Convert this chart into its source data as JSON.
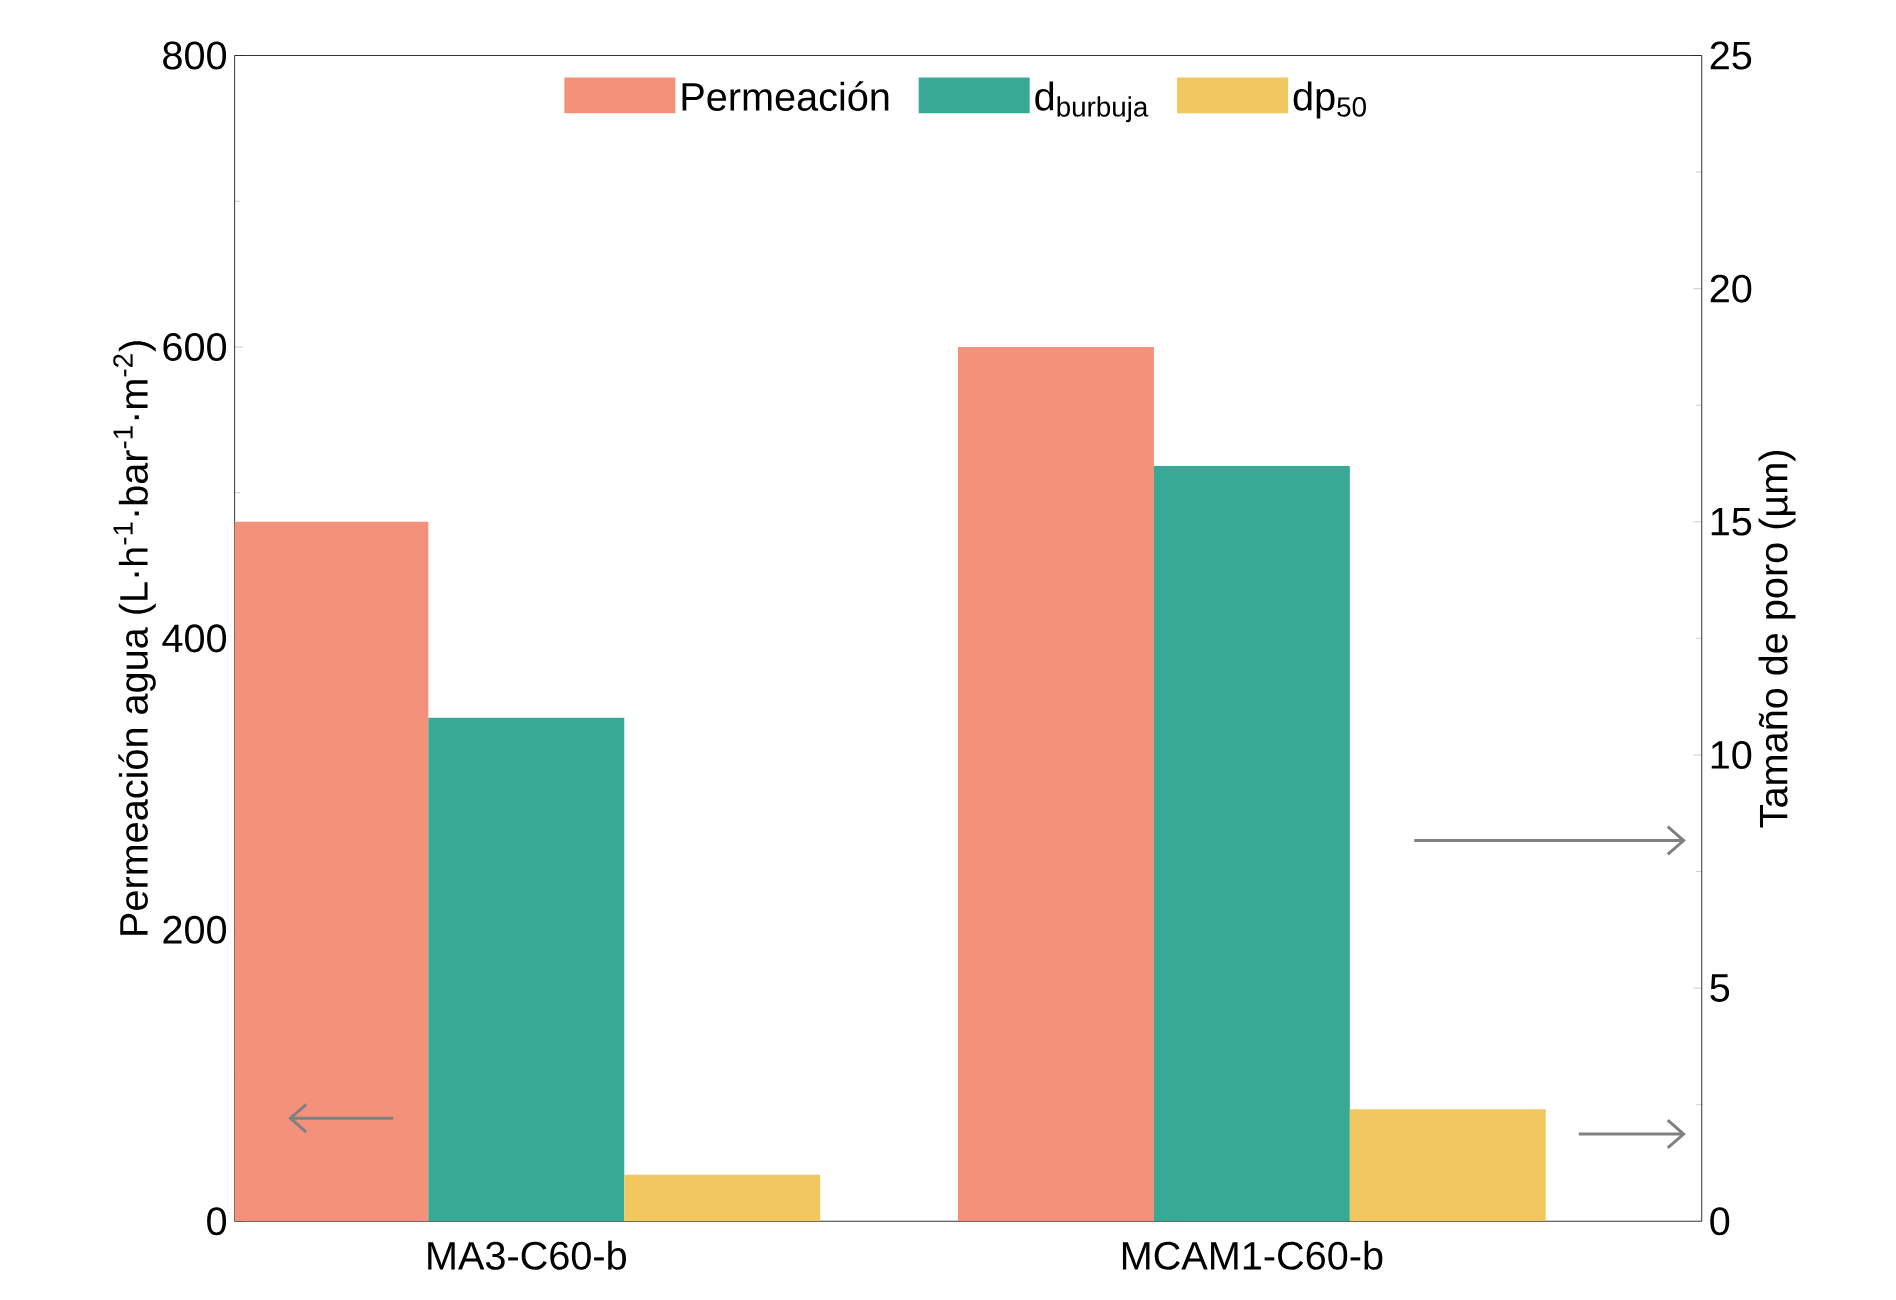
{
  "chart_data": {
    "type": "bar",
    "categories": [
      "MA3-C60-b",
      "MCAM1-C60-b"
    ],
    "ylabel": "Permeación agua (L·h$^{-1}$·bar$^{-1}$·m$^{-2}$)",
    "y2label": "Tamaño de poro (µm)",
    "ylim": [
      0,
      800
    ],
    "yticks": [
      0,
      200,
      400,
      600,
      800
    ],
    "y2lim": [
      0,
      25
    ],
    "y2ticks": [
      0,
      5,
      10,
      15,
      20,
      25
    ],
    "legend": "top",
    "series": [
      {
        "name": "Permeación",
        "color": "#f4917a",
        "values": [
          480,
          600
        ]
      },
      {
        "name": "d$_{burbuja}$",
        "color": "#37a995",
        "values": [
          10.8,
          16.2
        ],
        "axis": "y2"
      },
      {
        "name": "dp$_{50}$",
        "color": "#f2c75f",
        "values": [
          1.0,
          2.4
        ],
        "axis": "y2"
      }
    ]
  }
}
